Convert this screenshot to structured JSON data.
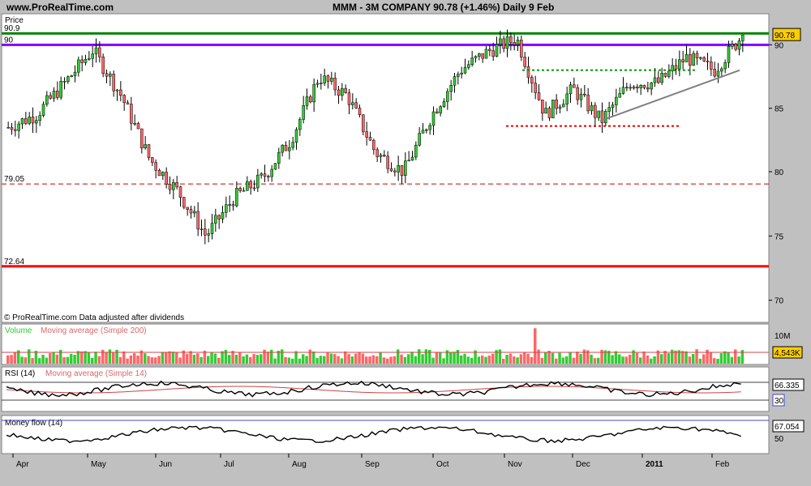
{
  "header": {
    "site": "www.ProRealTime.com",
    "title": "MMM - 3M COMPANY    90.78 (+1.46%)    Daily  9 Feb"
  },
  "price_panel": {
    "label": "Price",
    "footer": "© ProRealTime.com  Data adjusted after dividends",
    "last_value": "90.78",
    "ticks": [
      "90",
      "85",
      "80",
      "75",
      "70"
    ],
    "level_labels": [
      "90.9",
      "90",
      "79.05",
      "72.64"
    ]
  },
  "volume_panel": {
    "label": "Volume",
    "ma_label": "Moving average (Simple 200)",
    "tick": "10M",
    "last_value": "4,543K"
  },
  "rsi_panel": {
    "label": "RSI (14)",
    "ma_label": "Moving average (Simple 14)",
    "last_value": "66.335",
    "low_level": "30"
  },
  "mf_panel": {
    "label": "Money flow (14)",
    "last_value": "67.054",
    "tick": "50"
  },
  "x_axis": {
    "labels": [
      "Apr",
      "May",
      "Jun",
      "Jul",
      "Aug",
      "Sep",
      "Oct",
      "Nov",
      "Dec",
      "2011",
      "Feb"
    ]
  },
  "chart_data": {
    "type": "candlestick",
    "title": "MMM - 3M COMPANY",
    "ylim": [
      68,
      92
    ],
    "x_labels": [
      "Apr",
      "May",
      "Jun",
      "Jul",
      "Aug",
      "Sep",
      "Oct",
      "Nov",
      "Dec",
      "2011",
      "Feb"
    ],
    "close_series": [
      {
        "date": "Apr",
        "close": 83.5
      },
      {
        "date": "Apr-mid",
        "close": 84.5
      },
      {
        "date": "Apr-late",
        "close": 87.0
      },
      {
        "date": "May",
        "close": 89.6
      },
      {
        "date": "May-mid",
        "close": 86.0
      },
      {
        "date": "May-late",
        "close": 81.0
      },
      {
        "date": "Jun",
        "close": 78.5
      },
      {
        "date": "Jun-mid",
        "close": 75.0
      },
      {
        "date": "Jun-late",
        "close": 78.0
      },
      {
        "date": "Jul",
        "close": 79.5
      },
      {
        "date": "Jul-mid",
        "close": 82.5
      },
      {
        "date": "Aug",
        "close": 87.5
      },
      {
        "date": "Aug-mid",
        "close": 86.0
      },
      {
        "date": "Aug-late",
        "close": 81.5
      },
      {
        "date": "Sep",
        "close": 80.0
      },
      {
        "date": "Sep-mid",
        "close": 84.5
      },
      {
        "date": "Oct",
        "close": 88.0
      },
      {
        "date": "Oct-mid",
        "close": 89.5
      },
      {
        "date": "Oct-late",
        "close": 90.5
      },
      {
        "date": "Nov",
        "close": 84.5
      },
      {
        "date": "Nov-mid",
        "close": 86.5
      },
      {
        "date": "Dec",
        "close": 84.0
      },
      {
        "date": "Dec-mid",
        "close": 87.0
      },
      {
        "date": "2011",
        "close": 87.0
      },
      {
        "date": "Jan-mid",
        "close": 89.0
      },
      {
        "date": "Feb",
        "close": 88.0
      },
      {
        "date": "Feb 9",
        "close": 90.78
      }
    ],
    "horizontal_levels": [
      {
        "value": 90.9,
        "color": "#008000"
      },
      {
        "value": 90,
        "color": "#8000ff"
      },
      {
        "value": 79.05,
        "color": "#cc0000",
        "style": "dashed"
      },
      {
        "value": 72.64,
        "color": "#ff0000"
      }
    ],
    "last_close": 90.78,
    "change_pct": 1.46
  }
}
